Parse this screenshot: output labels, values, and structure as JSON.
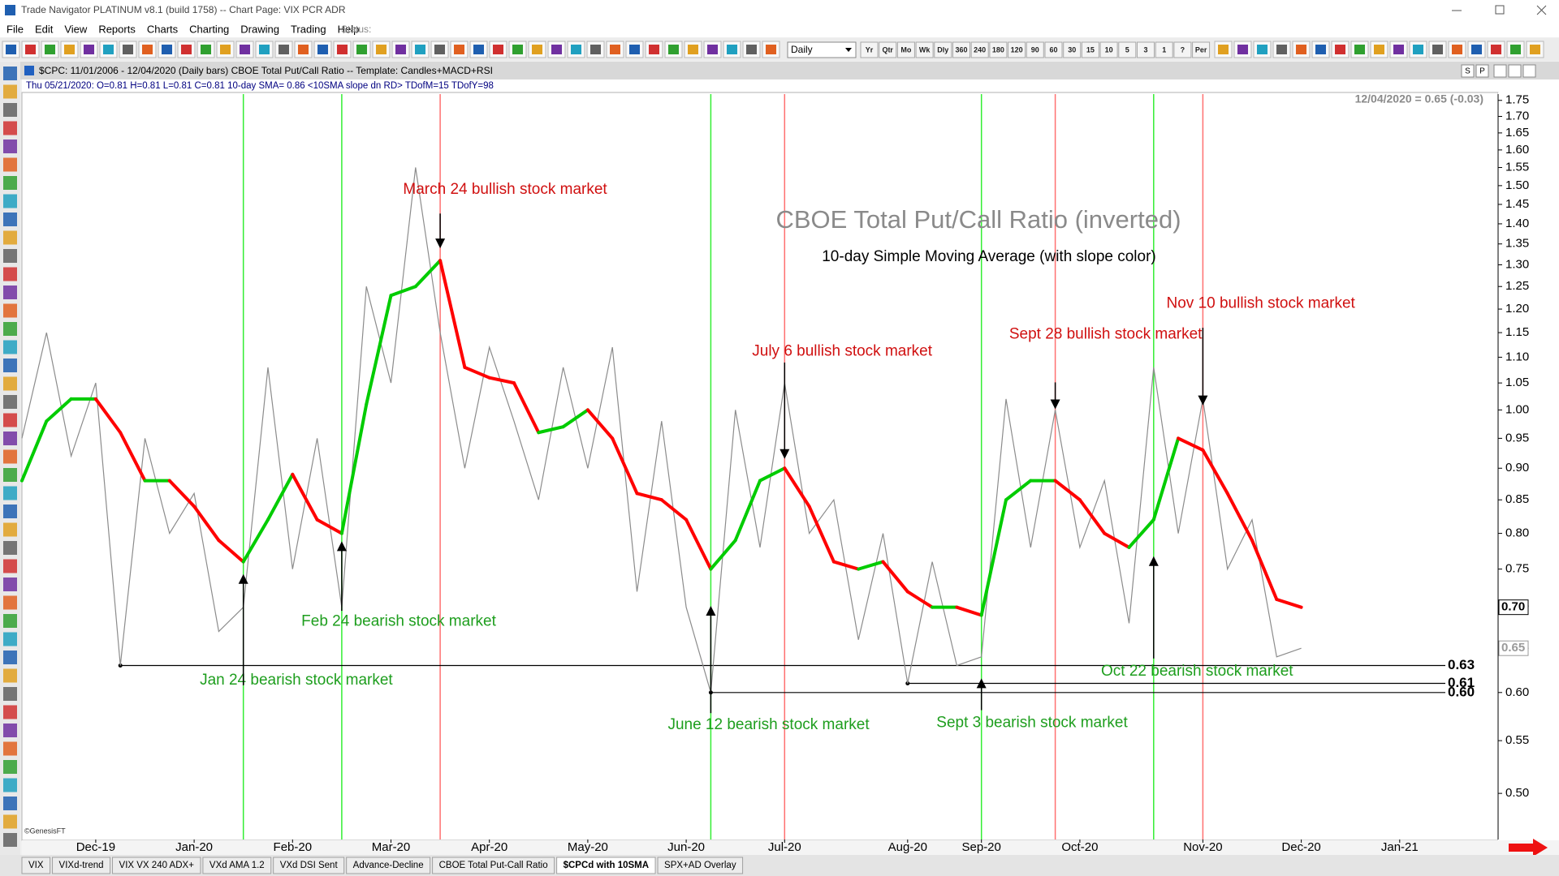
{
  "window": {
    "title": "Trade Navigator PLATINUM v8.1 (build 1758)  --  Chart Page: VIX PCR ADR"
  },
  "menu": [
    "File",
    "Edit",
    "View",
    "Reports",
    "Charts",
    "Charting",
    "Drawing",
    "Trading",
    "Help"
  ],
  "status_label": "Status:",
  "timeframe": "Daily",
  "period_buttons": [
    "Yr",
    "Qtr",
    "Mo",
    "Wk",
    "Dly",
    "360",
    "240",
    "180",
    "120",
    "90",
    "60",
    "30",
    "15",
    "10",
    "5",
    "3",
    "1",
    "?",
    "Per"
  ],
  "chart_window": {
    "title": "$CPC:  11/01/2006 - 12/04/2020  (Daily bars)   CBOE Total Put/Call Ratio  --  Template: Candles+MACD+RSI",
    "info": "Thu   05/21/2020:  O=0.81  H=0.81  L=0.81  C=0.81  10-day SMA= 0.86  <10SMA slope dn RD>  TDofM=15  TDofY=98",
    "buttons": [
      "S",
      "P"
    ]
  },
  "chart_data": {
    "type": "line",
    "title": "CBOE Total Put/Call Ratio (inverted)",
    "subtitle": "10-day Simple Moving Average (with slope color)",
    "last_value_note": "12/04/2020 = 0.65 (-0.03)",
    "copyright": "©GenesisFT",
    "categories": [
      null,
      null,
      null,
      "Dec-19",
      null,
      null,
      null,
      "Jan-20",
      null,
      null,
      null,
      "Feb-20",
      null,
      null,
      null,
      "Mar-20",
      null,
      null,
      null,
      "Apr-20",
      null,
      null,
      null,
      "May-20",
      null,
      null,
      null,
      "Jun-20",
      null,
      null,
      null,
      "Jul-20",
      null,
      null,
      null,
      null,
      "Aug-20",
      null,
      null,
      "Sep-20",
      null,
      null,
      null,
      "Oct-20",
      null,
      null,
      null,
      null,
      "Nov-20",
      null,
      null,
      null,
      "Dec-20",
      null,
      null,
      null,
      "Jan-21",
      null,
      null,
      null
    ],
    "series": [
      {
        "color": "#8c8c8c",
        "values": [
          0.95,
          1.15,
          0.92,
          1.05,
          0.63,
          0.95,
          0.8,
          0.86,
          0.67,
          0.7,
          1.08,
          0.75,
          0.95,
          0.7,
          1.25,
          1.05,
          1.55,
          1.15,
          0.9,
          1.12,
          0.98,
          0.85,
          1.08,
          0.9,
          1.12,
          0.72,
          0.98,
          0.7,
          0.6,
          1.0,
          0.78,
          1.05,
          0.8,
          0.85,
          0.66,
          0.8,
          0.61,
          0.76,
          0.63,
          0.64,
          1.02,
          0.78,
          1.0,
          0.78,
          0.88,
          0.68,
          1.08,
          0.8,
          1.02,
          0.75,
          0.82,
          0.64,
          0.65,
          null,
          null,
          null,
          null,
          null,
          null,
          null
        ]
      },
      {
        "color": "#00cc00",
        "down_color": "#ff0000",
        "values": [
          0.88,
          0.98,
          1.02,
          1.02,
          0.96,
          0.88,
          0.88,
          0.84,
          0.79,
          0.76,
          0.82,
          0.89,
          0.82,
          0.8,
          1.01,
          1.23,
          1.25,
          1.31,
          1.08,
          1.06,
          1.05,
          0.96,
          0.97,
          1.0,
          0.95,
          0.86,
          0.85,
          0.82,
          0.75,
          0.79,
          0.88,
          0.9,
          0.84,
          0.76,
          0.75,
          0.76,
          0.72,
          0.7,
          0.7,
          0.69,
          0.85,
          0.88,
          0.88,
          0.85,
          0.8,
          0.78,
          0.82,
          0.95,
          0.93,
          0.86,
          0.79,
          0.71,
          0.7,
          null,
          null,
          null,
          null,
          null,
          null,
          null
        ]
      }
    ],
    "log_scale": true,
    "ylim": [
      0.46,
      1.77
    ],
    "yticks": [
      {
        "value": 0.5,
        "label": "0.50"
      },
      0.55,
      {
        "value": 0.6,
        "label": "0.60"
      },
      0.65,
      {
        "value": 0.7,
        "label": "0.70"
      },
      0.75,
      {
        "value": 0.8,
        "label": "0.80"
      },
      0.85,
      {
        "value": 0.9,
        "label": "0.90"
      },
      0.95,
      {
        "value": 1.0,
        "label": "1.00"
      },
      1.05,
      {
        "value": 1.1,
        "label": "1.10"
      },
      1.15,
      {
        "value": 1.2,
        "label": "1.20"
      },
      1.25,
      {
        "value": 1.3,
        "label": "1.30"
      },
      1.35,
      {
        "value": 1.4,
        "label": "1.40"
      },
      1.45,
      {
        "value": 1.5,
        "label": "1.50"
      },
      1.55,
      {
        "value": 1.6,
        "label": "1.60"
      },
      1.65,
      {
        "value": 1.7,
        "label": "1.70"
      },
      1.75
    ],
    "levels": [
      {
        "value": 0.63,
        "label": "0.63",
        "start": 4
      },
      {
        "value": 0.61,
        "label": "0.61",
        "start": 36
      },
      {
        "value": 0.6,
        "label": "0.60",
        "start": 28
      }
    ],
    "price_markers": [
      {
        "value": 0.7,
        "label": "0.70",
        "color": "#000000"
      },
      {
        "value": 0.65,
        "label": "0.65",
        "color": "#9a9a9a"
      }
    ],
    "events": [
      {
        "label": "Jan 24 bearish stock market",
        "index": 9,
        "color": "#33ee33",
        "text_color": "#1e9e1e"
      },
      {
        "label": "Feb 24 bearish stock market",
        "index": 13,
        "color": "#33ee33",
        "text_color": "#1e9e1e"
      },
      {
        "label": "March 24 bullish stock market",
        "index": 17,
        "color": "#ff7070",
        "text_color": "#d01010"
      },
      {
        "label": "June 12 bearish stock market",
        "index": 28,
        "color": "#33ee33",
        "text_color": "#1e9e1e"
      },
      {
        "label": "July 6 bullish stock market",
        "index": 31,
        "color": "#ff7070",
        "text_color": "#d01010"
      },
      {
        "label": "Sept 3 bearish stock market",
        "index": 39,
        "color": "#33ee33",
        "text_color": "#1e9e1e"
      },
      {
        "label": "Sept 28 bullish stock market",
        "index": 42,
        "color": "#ff7070",
        "text_color": "#d01010"
      },
      {
        "label": "Oct 22 bearish stock market",
        "index": 46,
        "color": "#33ee33",
        "text_color": "#1e9e1e"
      },
      {
        "label": "Nov 10 bullish stock market",
        "index": 48,
        "color": "#ff7070",
        "text_color": "#d01010"
      }
    ]
  },
  "tabs": [
    "VIX",
    "VIXd-trend",
    "VIX VX 240 ADX+",
    "VXd AMA 1.2",
    "VXd DSI Sent",
    "Advance-Decline",
    "CBOE Total Put-Call Ratio",
    "$CPCd with 10SMA",
    "SPX+AD Overlay"
  ],
  "active_tab": 7
}
